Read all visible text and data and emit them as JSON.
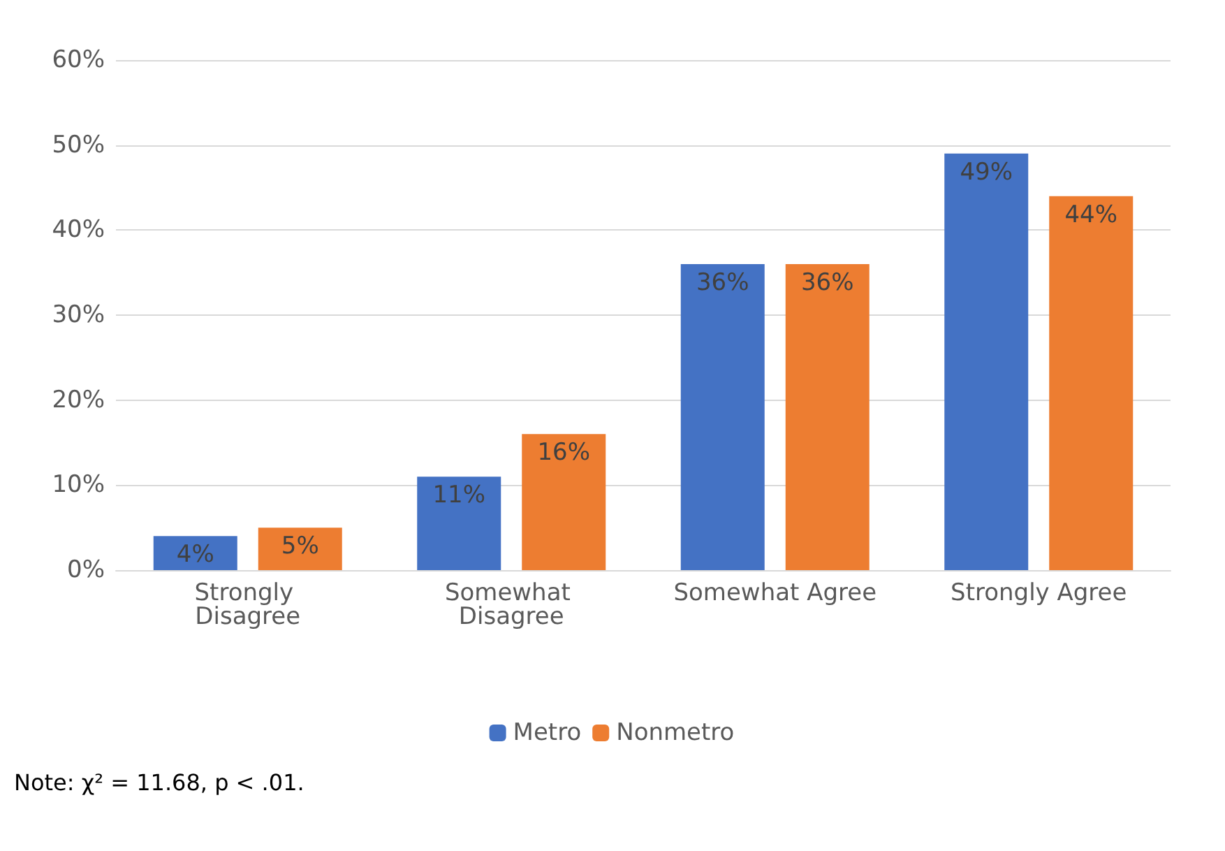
{
  "chart_data": {
    "type": "bar",
    "categories": [
      "Strongly Disagree",
      "Somewhat Disagree",
      "Somewhat Agree",
      "Strongly Agree"
    ],
    "series": [
      {
        "name": "Metro",
        "color": "#4472c4",
        "values": [
          4,
          11,
          36,
          49
        ],
        "value_labels": [
          "4%",
          "11%",
          "36%",
          "49%"
        ]
      },
      {
        "name": "Nonmetro",
        "color": "#ed7d31",
        "values": [
          5,
          16,
          36,
          44
        ],
        "value_labels": [
          "5%",
          "16%",
          "36%",
          "44%"
        ]
      }
    ],
    "ylim": [
      0,
      60
    ],
    "yticks": [
      {
        "value": 0,
        "label": "0%"
      },
      {
        "value": 10,
        "label": "10%"
      },
      {
        "value": 20,
        "label": "20%"
      },
      {
        "value": 30,
        "label": "30%"
      },
      {
        "value": 40,
        "label": "40%"
      },
      {
        "value": 50,
        "label": "50%"
      },
      {
        "value": 60,
        "label": "60%"
      }
    ],
    "grid": "y",
    "legend": "bottom",
    "annotations": [
      "Note: χ² = 11.68, p < .01."
    ]
  }
}
